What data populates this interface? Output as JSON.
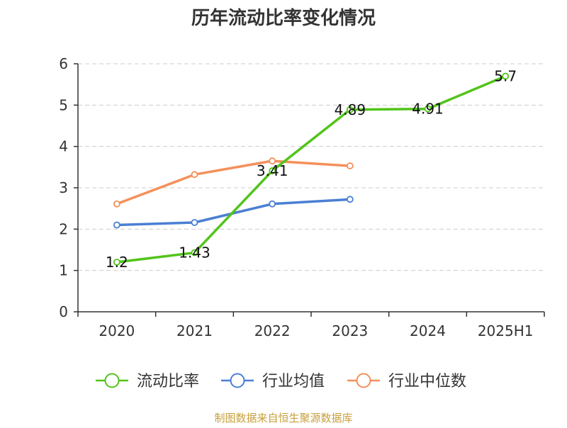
{
  "chart_data": {
    "type": "line",
    "title": "历年流动比率变化情况",
    "categories": [
      "2020",
      "2021",
      "2022",
      "2023",
      "2024",
      "2025H1"
    ],
    "ylim": [
      0,
      6
    ],
    "yticks": [
      "0",
      "1",
      "2",
      "3",
      "4",
      "5",
      "6"
    ],
    "grid": true,
    "legend_position": "bottom",
    "series": [
      {
        "name": "流动比率",
        "color": "#52c41a",
        "values": [
          1.2,
          1.43,
          3.41,
          4.89,
          4.91,
          5.7
        ],
        "labels": [
          "1.2",
          "1.43",
          "3.41",
          "4.89",
          "4.91",
          "5.7"
        ]
      },
      {
        "name": "行业均值",
        "color": "#4a7fd4",
        "values": [
          2.1,
          2.16,
          2.61,
          2.72,
          null,
          null
        ]
      },
      {
        "name": "行业中位数",
        "color": "#f4905a",
        "values": [
          2.61,
          3.32,
          3.65,
          3.53,
          null,
          null
        ]
      }
    ]
  },
  "source": {
    "text": "制图数据来自恒生聚源数据库",
    "color": "#c8a03c"
  }
}
